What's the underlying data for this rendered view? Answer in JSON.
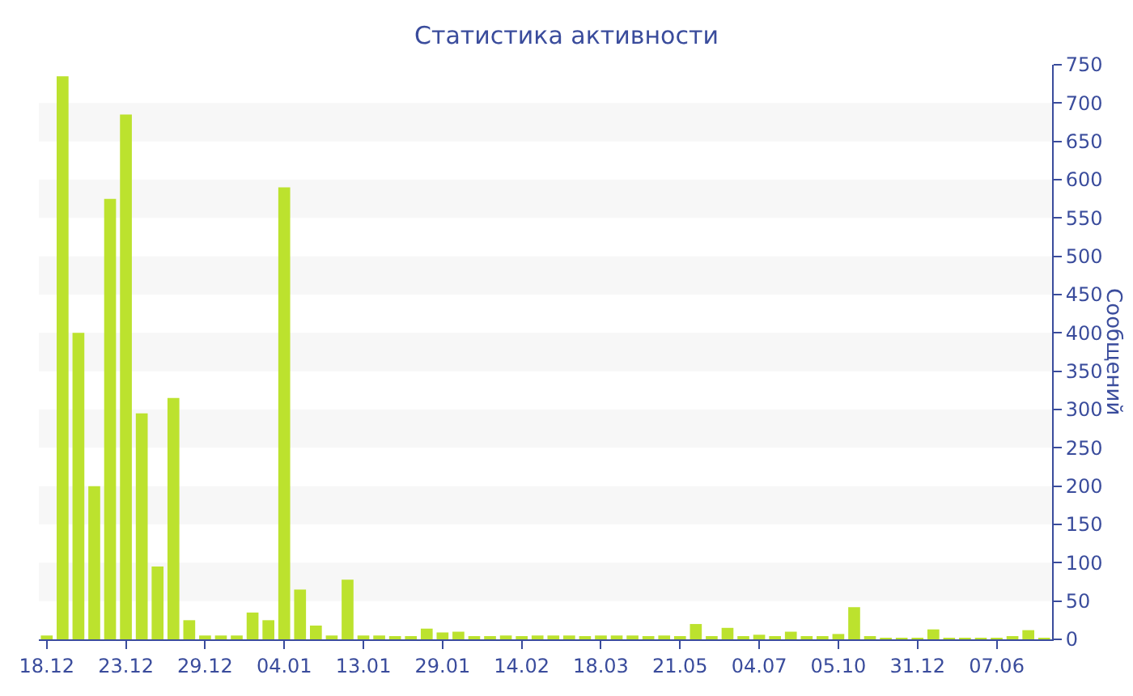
{
  "chart_data": {
    "type": "bar",
    "title": "Статистика активности",
    "ylabel": "Сообщений",
    "categories": [
      "18.12",
      null,
      null,
      null,
      null,
      "23.12",
      null,
      null,
      null,
      null,
      "29.12",
      null,
      null,
      null,
      null,
      "04.01",
      null,
      null,
      null,
      null,
      "13.01",
      null,
      null,
      null,
      null,
      "29.01",
      null,
      null,
      null,
      null,
      "14.02",
      null,
      null,
      null,
      null,
      "18.03",
      null,
      null,
      null,
      null,
      "21.05",
      null,
      null,
      null,
      null,
      "04.07",
      null,
      null,
      null,
      null,
      "05.10",
      null,
      null,
      null,
      null,
      "31.12",
      null,
      null,
      null,
      null,
      "07.06",
      null,
      null,
      null
    ],
    "series": [
      {
        "color": "#bce22e",
        "values": [
          5,
          735,
          400,
          200,
          575,
          685,
          295,
          95,
          315,
          25,
          5,
          5,
          5,
          35,
          25,
          590,
          65,
          18,
          5,
          78,
          5,
          5,
          4,
          4,
          14,
          9,
          10,
          4,
          3,
          5,
          3,
          5,
          5,
          5,
          3,
          5,
          5,
          5,
          3,
          5,
          3,
          20,
          3,
          15,
          3,
          6,
          3,
          10,
          4,
          3,
          7,
          42,
          3,
          2,
          2,
          2,
          13,
          2,
          2,
          2,
          2,
          3,
          12,
          2
        ]
      }
    ],
    "ylim": [
      0,
      750
    ],
    "yticks": [
      0,
      50,
      100,
      150,
      200,
      250,
      300,
      350,
      400,
      450,
      500,
      550,
      600,
      650,
      700,
      750
    ],
    "bands": [
      {
        "axis": "y",
        "from": 50,
        "to": 100,
        "color": "#f7f7f7"
      },
      {
        "axis": "y",
        "from": 150,
        "to": 200,
        "color": "#f7f7f7"
      },
      {
        "axis": "y",
        "from": 250,
        "to": 300,
        "color": "#f7f7f7"
      },
      {
        "axis": "y",
        "from": 350,
        "to": 400,
        "color": "#f7f7f7"
      },
      {
        "axis": "y",
        "from": 450,
        "to": 500,
        "color": "#f7f7f7"
      },
      {
        "axis": "y",
        "from": 550,
        "to": 600,
        "color": "#f7f7f7"
      },
      {
        "axis": "y",
        "from": 650,
        "to": 700,
        "color": "#f7f7f7"
      }
    ],
    "legend": false
  }
}
